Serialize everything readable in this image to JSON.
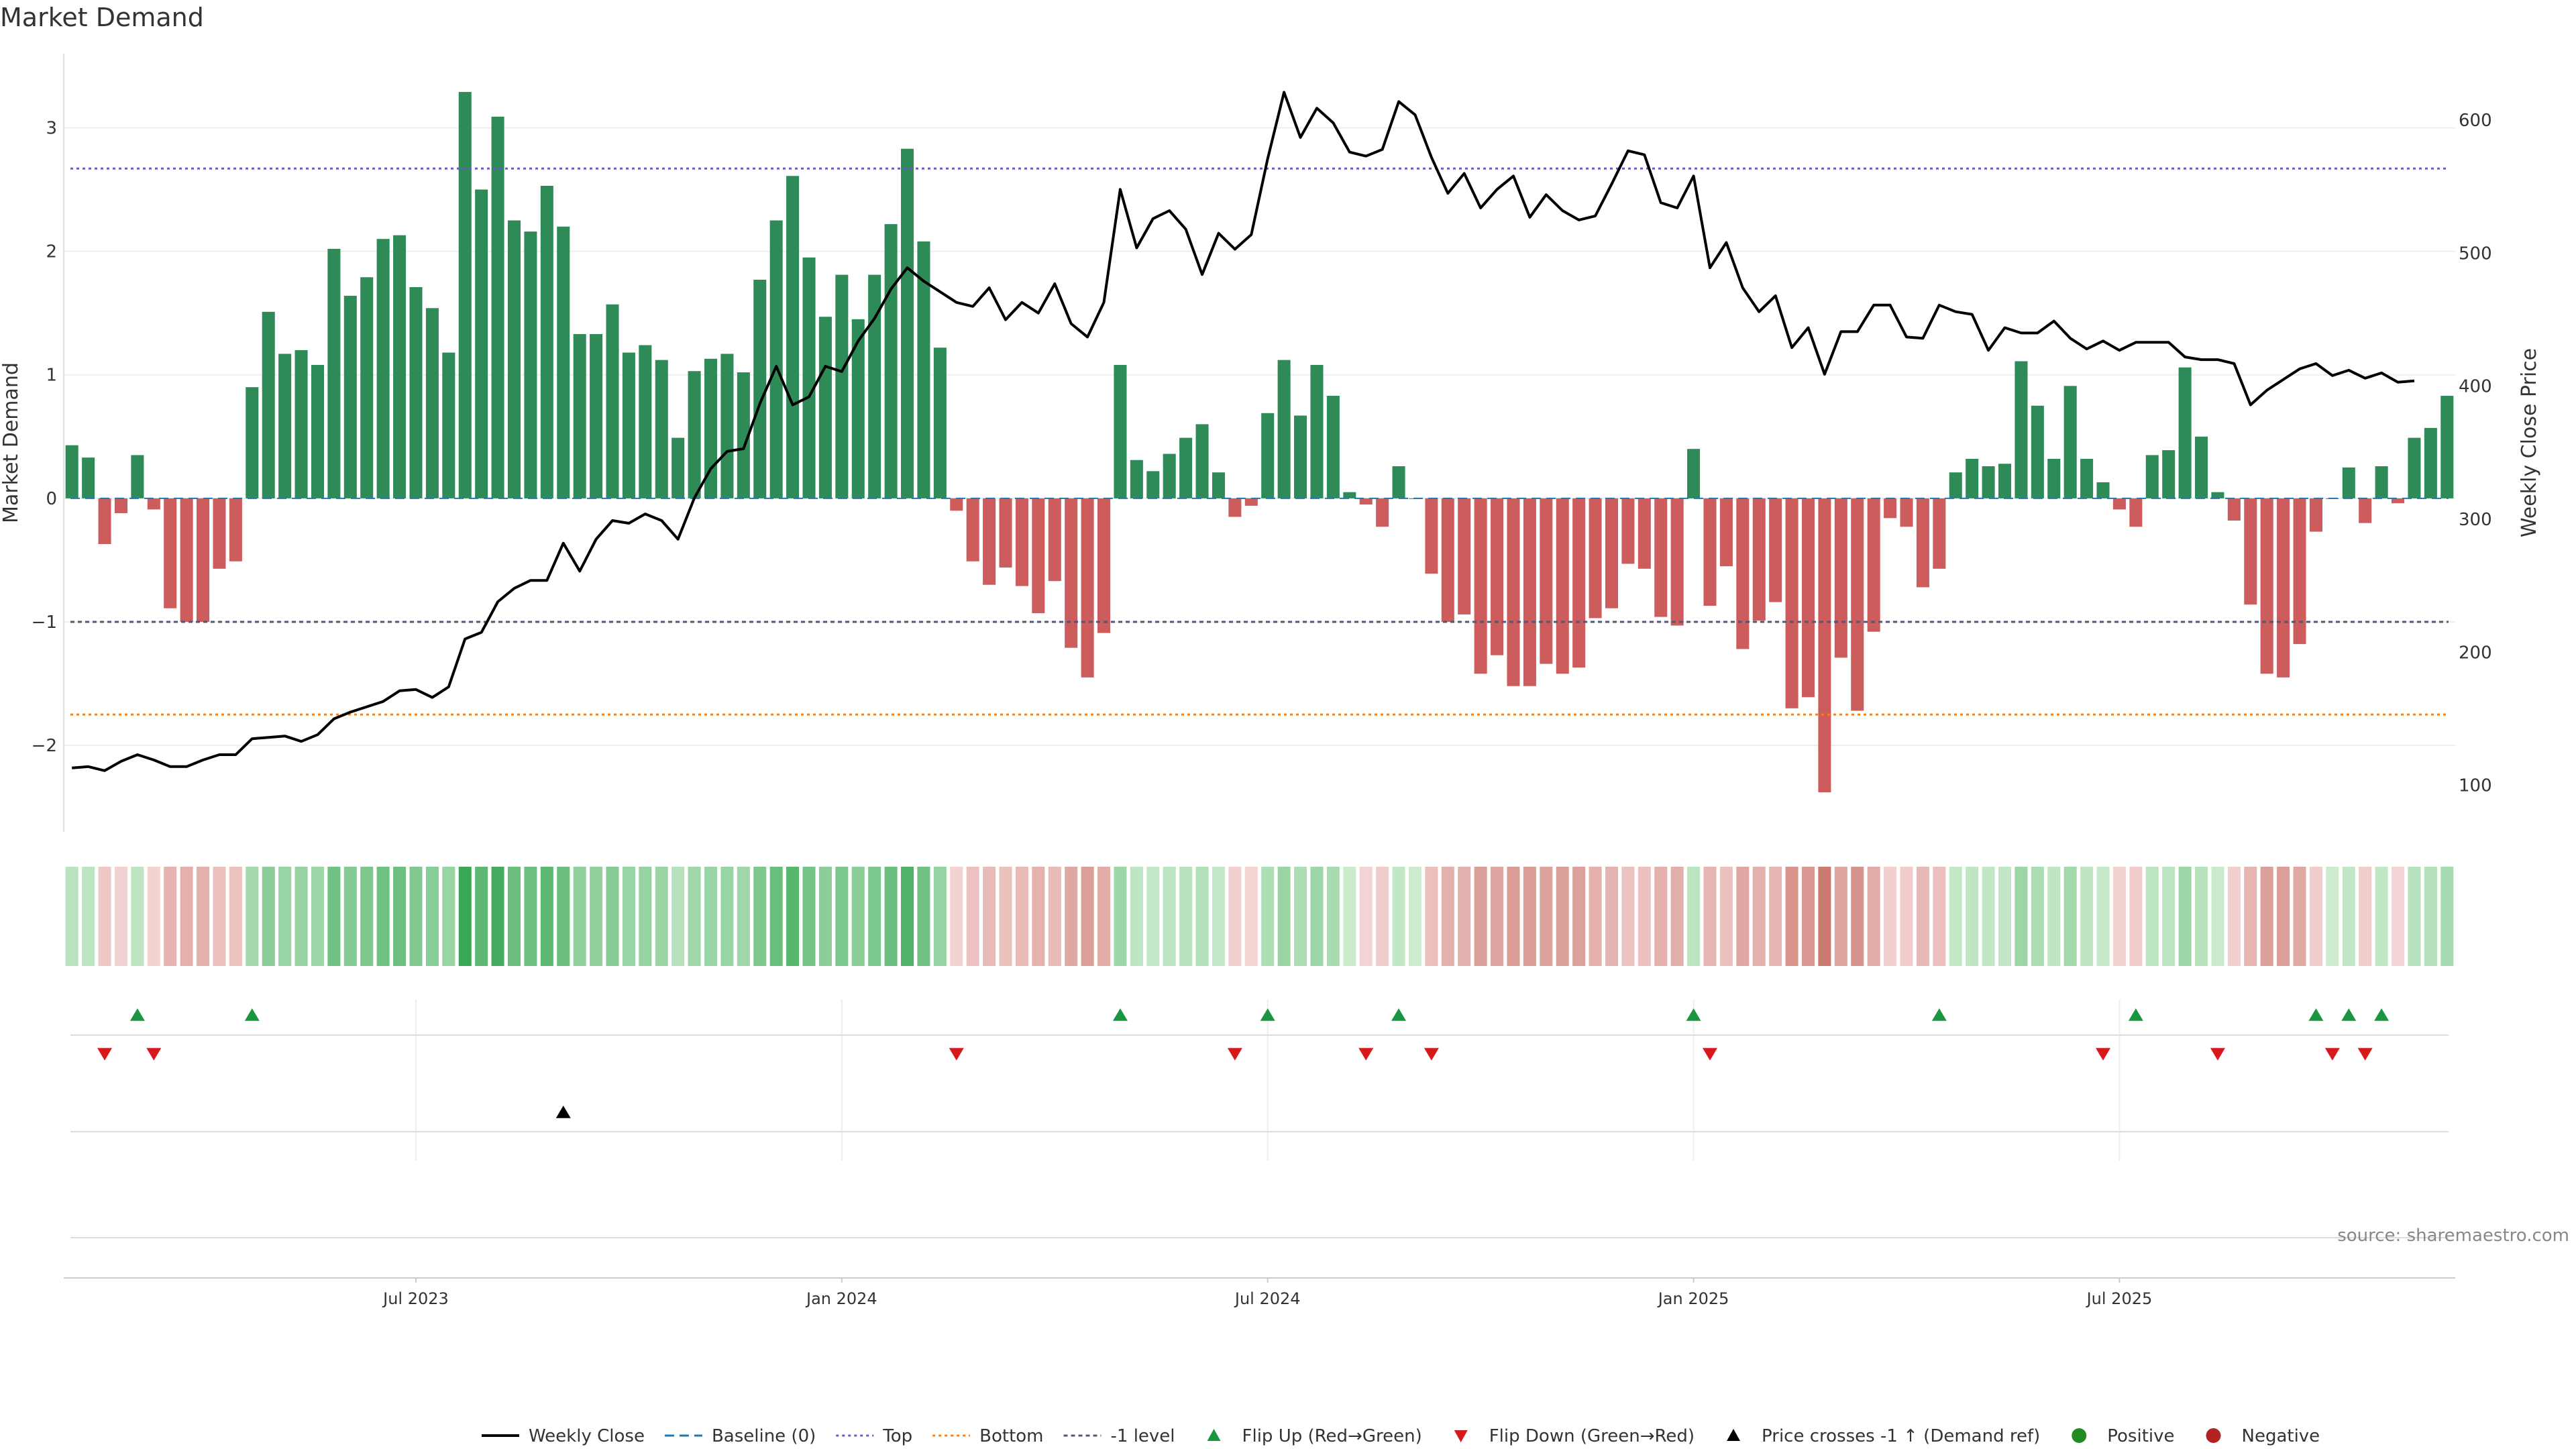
{
  "title": "Market Demand",
  "source": "source: sharemaestro.com",
  "colors": {
    "positive_bar": "#2e8b57",
    "negative_bar": "#cd5c5c",
    "price_line": "#000000",
    "baseline": "#1f77b4",
    "top_line": "#6a5acd",
    "bottom_line": "#ff7f0e",
    "minus1_line": "#555577",
    "flip_up": "#1a9641",
    "flip_down": "#d7191c",
    "cross_marker": "#000000",
    "positive_dot": "#228b22",
    "negative_dot": "#b22222"
  },
  "chart_data": {
    "type": "bar",
    "title": "Market Demand",
    "ylabel": "Market Demand",
    "y2label": "Weekly Close Price",
    "ylim": [
      -2.7,
      3.6
    ],
    "y_ticks": [
      -2,
      -1,
      0,
      1,
      2,
      3
    ],
    "y_tick_labels": [
      "−2",
      "−1",
      "0",
      "1",
      "2",
      "3"
    ],
    "y2lim": [
      65,
      650
    ],
    "y2_ticks": [
      100,
      200,
      300,
      400,
      500,
      600
    ],
    "date_ticks": [
      {
        "index": 21,
        "label": "Jul 2023"
      },
      {
        "index": 47,
        "label": "Jan 2024"
      },
      {
        "index": 73,
        "label": "Jul 2024"
      },
      {
        "index": 99,
        "label": "Jan 2025"
      },
      {
        "index": 125,
        "label": "Jul 2025"
      }
    ],
    "reference_lines": {
      "top": 2.67,
      "bottom": -1.75,
      "minus_one": -1.0,
      "baseline": 0
    },
    "demand": [
      0.43,
      0.33,
      -0.37,
      -0.12,
      0.35,
      -0.09,
      -0.89,
      -1.0,
      -1.0,
      -0.57,
      -0.51,
      0.9,
      1.51,
      1.17,
      1.2,
      1.08,
      2.02,
      1.64,
      1.79,
      2.1,
      2.13,
      1.71,
      1.54,
      1.18,
      3.29,
      2.5,
      3.09,
      2.25,
      2.16,
      2.53,
      2.2,
      1.33,
      1.33,
      1.57,
      1.18,
      1.24,
      1.12,
      0.49,
      1.03,
      1.13,
      1.17,
      1.02,
      1.77,
      2.25,
      2.61,
      1.95,
      1.47,
      1.81,
      1.45,
      1.81,
      2.22,
      2.83,
      2.08,
      1.22,
      -0.1,
      -0.51,
      -0.7,
      -0.56,
      -0.71,
      -0.93,
      -0.67,
      -1.21,
      -1.45,
      -1.09,
      1.08,
      0.31,
      0.22,
      0.36,
      0.49,
      0.6,
      0.21,
      -0.15,
      -0.06,
      0.69,
      1.12,
      0.67,
      1.08,
      0.83,
      0.05,
      -0.05,
      -0.23,
      0.26,
      0.0,
      -0.61,
      -1.0,
      -0.94,
      -1.42,
      -1.27,
      -1.52,
      -1.52,
      -1.34,
      -1.42,
      -1.37,
      -0.97,
      -0.89,
      -0.53,
      -0.57,
      -0.96,
      -1.03,
      0.4,
      -0.87,
      -0.55,
      -1.22,
      -0.99,
      -0.84,
      -1.7,
      -1.61,
      -2.38,
      -1.29,
      -1.72,
      -1.08,
      -0.16,
      -0.23,
      -0.72,
      -0.57,
      0.21,
      0.32,
      0.26,
      0.28,
      1.11,
      0.75,
      0.32,
      0.91,
      0.32,
      0.13,
      -0.09,
      -0.23,
      0.35,
      0.39,
      1.06,
      0.5,
      0.05,
      -0.18,
      -0.86,
      -1.42,
      -1.45,
      -1.18,
      -0.27,
      0.0,
      0.25,
      -0.2,
      0.26,
      -0.04,
      0.49,
      0.57,
      0.83
    ],
    "price": [
      113,
      114,
      111,
      118,
      123,
      119,
      114,
      114,
      119,
      123,
      123,
      135,
      136,
      137,
      133,
      138,
      150,
      155,
      159,
      163,
      171,
      172,
      166,
      174,
      210,
      215,
      238,
      248,
      254,
      254,
      282,
      261,
      285,
      299,
      297,
      304,
      299,
      285,
      316,
      338,
      351,
      353,
      387,
      415,
      386,
      392,
      415,
      411,
      434,
      451,
      473,
      489,
      479,
      471,
      463,
      460,
      474,
      450,
      463,
      455,
      477,
      447,
      437,
      463,
      548,
      504,
      526,
      532,
      518,
      484,
      515,
      503,
      514,
      571,
      621,
      587,
      609,
      598,
      576,
      573,
      578,
      614,
      604,
      572,
      545,
      560,
      534,
      548,
      558,
      527,
      544,
      532,
      525,
      528,
      552,
      577,
      574,
      538,
      534,
      558,
      489,
      508,
      474,
      456,
      468,
      429,
      444,
      409,
      441,
      441,
      461,
      461,
      437,
      436,
      461,
      456,
      454,
      427,
      444,
      440,
      440,
      449,
      436,
      428,
      434,
      427,
      433,
      433,
      433,
      422,
      420,
      420,
      417,
      386,
      397,
      405,
      413,
      417,
      408,
      412,
      406,
      410,
      403,
      404
    ],
    "flip_up_idx": [
      4,
      11,
      64,
      73,
      81,
      99,
      114,
      126,
      137,
      139,
      141
    ],
    "flip_down_idx": [
      2,
      5,
      54,
      71,
      79,
      83,
      100,
      124,
      131,
      138,
      140
    ],
    "price_cross_idx": [
      30
    ]
  },
  "legend": {
    "items": [
      {
        "key": "weekly_close",
        "label": "Weekly Close"
      },
      {
        "key": "baseline",
        "label": "Baseline (0)"
      },
      {
        "key": "top",
        "label": "Top"
      },
      {
        "key": "bottom",
        "label": "Bottom"
      },
      {
        "key": "minus1",
        "label": "-1 level"
      },
      {
        "key": "flip_up",
        "label": "Flip Up (Red→Green)"
      },
      {
        "key": "flip_down",
        "label": "Flip Down (Green→Red)"
      },
      {
        "key": "price_cross",
        "label": "Price crosses -1 ↑ (Demand ref)"
      },
      {
        "key": "positive",
        "label": "Positive"
      },
      {
        "key": "negative",
        "label": "Negative"
      }
    ]
  }
}
